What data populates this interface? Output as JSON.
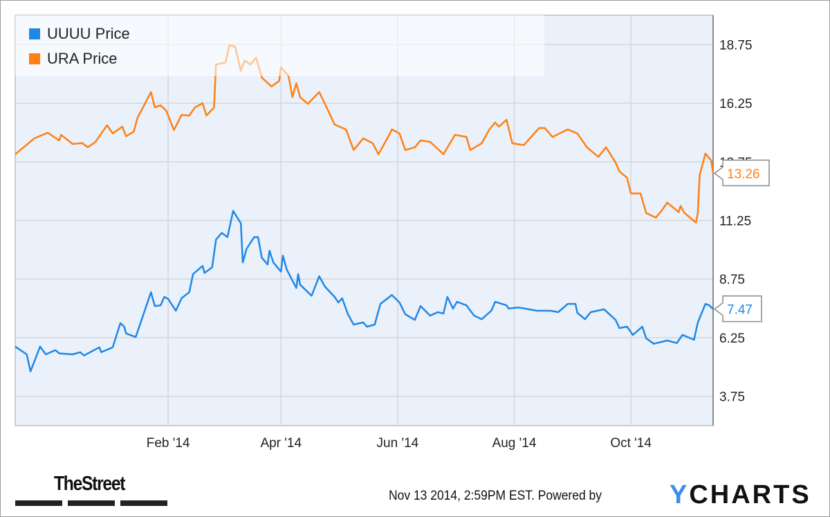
{
  "colors": {
    "uuuu": "#1f88e5",
    "ura": "#ff8012",
    "plot_bg": "#eaf1fb",
    "grid": "#d6d6d6"
  },
  "chart_data": {
    "type": "line",
    "x_unit": "days since Nov 13 2013",
    "xlim": [
      0,
      365
    ],
    "ylim": [
      2.5,
      20.0
    ],
    "y_axis_position": "right",
    "grid": true,
    "legend_position": "top-left",
    "y_ticks": [
      3.75,
      6.25,
      8.75,
      11.25,
      13.75,
      16.25,
      18.75
    ],
    "y_tick_labels": [
      "3.75",
      "6.25",
      "8.75",
      "11.25",
      "13.75",
      "16.25",
      "18.75"
    ],
    "x_ticks": [
      80,
      139,
      200,
      261,
      322
    ],
    "x_tick_labels": [
      "Feb '14",
      "Apr '14",
      "Jun '14",
      "Aug '14",
      "Oct '14"
    ],
    "series": [
      {
        "name": "UUUU Price",
        "key": "uuuu",
        "last_label": "7.47",
        "points": [
          [
            0,
            5.87
          ],
          [
            6,
            5.54
          ],
          [
            8,
            4.81
          ],
          [
            13,
            5.87
          ],
          [
            16,
            5.54
          ],
          [
            21,
            5.72
          ],
          [
            23,
            5.58
          ],
          [
            30,
            5.54
          ],
          [
            34,
            5.63
          ],
          [
            36,
            5.49
          ],
          [
            44,
            5.84
          ],
          [
            45,
            5.63
          ],
          [
            51,
            5.84
          ],
          [
            55,
            6.87
          ],
          [
            57,
            6.72
          ],
          [
            58,
            6.43
          ],
          [
            63,
            6.28
          ],
          [
            65,
            6.75
          ],
          [
            71,
            8.19
          ],
          [
            73,
            7.6
          ],
          [
            76,
            7.63
          ],
          [
            78,
            7.99
          ],
          [
            80,
            7.9
          ],
          [
            84,
            7.4
          ],
          [
            87,
            7.93
          ],
          [
            91,
            8.19
          ],
          [
            93,
            8.96
          ],
          [
            98,
            9.31
          ],
          [
            99,
            9.01
          ],
          [
            103,
            9.25
          ],
          [
            105,
            10.43
          ],
          [
            108,
            10.72
          ],
          [
            111,
            10.54
          ],
          [
            114,
            11.66
          ],
          [
            118,
            11.13
          ],
          [
            119,
            9.46
          ],
          [
            121,
            10.04
          ],
          [
            125,
            10.54
          ],
          [
            127,
            10.54
          ],
          [
            129,
            9.66
          ],
          [
            132,
            9.37
          ],
          [
            133,
            9.96
          ],
          [
            135,
            9.46
          ],
          [
            139,
            9.07
          ],
          [
            140,
            9.75
          ],
          [
            142,
            9.16
          ],
          [
            147,
            8.37
          ],
          [
            148,
            8.96
          ],
          [
            149,
            8.51
          ],
          [
            155,
            8.04
          ],
          [
            159,
            8.87
          ],
          [
            162,
            8.43
          ],
          [
            167,
            7.99
          ],
          [
            169,
            7.75
          ],
          [
            171,
            7.93
          ],
          [
            174,
            7.25
          ],
          [
            177,
            6.81
          ],
          [
            182,
            6.9
          ],
          [
            184,
            6.72
          ],
          [
            188,
            6.81
          ],
          [
            191,
            7.69
          ],
          [
            197,
            8.07
          ],
          [
            201,
            7.75
          ],
          [
            204,
            7.25
          ],
          [
            209,
            7.01
          ],
          [
            212,
            7.6
          ],
          [
            217,
            7.19
          ],
          [
            221,
            7.34
          ],
          [
            224,
            7.28
          ],
          [
            226,
            7.99
          ],
          [
            229,
            7.49
          ],
          [
            231,
            7.78
          ],
          [
            236,
            7.63
          ],
          [
            240,
            7.19
          ],
          [
            244,
            7.04
          ],
          [
            249,
            7.4
          ],
          [
            251,
            7.78
          ],
          [
            257,
            7.63
          ],
          [
            258,
            7.49
          ],
          [
            263,
            7.54
          ],
          [
            273,
            7.4
          ],
          [
            280,
            7.4
          ],
          [
            284,
            7.34
          ],
          [
            289,
            7.69
          ],
          [
            293,
            7.69
          ],
          [
            294,
            7.31
          ],
          [
            298,
            7.04
          ],
          [
            301,
            7.34
          ],
          [
            308,
            7.46
          ],
          [
            314,
            7.01
          ],
          [
            316,
            6.66
          ],
          [
            320,
            6.72
          ],
          [
            323,
            6.37
          ],
          [
            328,
            6.72
          ],
          [
            330,
            6.22
          ],
          [
            334,
            5.99
          ],
          [
            341,
            6.13
          ],
          [
            346,
            6.02
          ],
          [
            349,
            6.37
          ],
          [
            355,
            6.16
          ],
          [
            357,
            6.9
          ],
          [
            361,
            7.69
          ],
          [
            363,
            7.63
          ],
          [
            365,
            7.47
          ]
        ]
      },
      {
        "name": "URA Price",
        "key": "ura",
        "last_label": "13.26",
        "points": [
          [
            0,
            14.07
          ],
          [
            10,
            14.75
          ],
          [
            17,
            14.99
          ],
          [
            23,
            14.66
          ],
          [
            24,
            14.9
          ],
          [
            30,
            14.51
          ],
          [
            35,
            14.55
          ],
          [
            38,
            14.37
          ],
          [
            42,
            14.6
          ],
          [
            48,
            15.31
          ],
          [
            51,
            14.96
          ],
          [
            56,
            15.25
          ],
          [
            58,
            14.84
          ],
          [
            62,
            15.04
          ],
          [
            64,
            15.63
          ],
          [
            71,
            16.72
          ],
          [
            73,
            16.07
          ],
          [
            76,
            16.16
          ],
          [
            79,
            15.93
          ],
          [
            83,
            15.1
          ],
          [
            87,
            15.75
          ],
          [
            91,
            15.72
          ],
          [
            94,
            16.07
          ],
          [
            98,
            16.25
          ],
          [
            100,
            15.72
          ],
          [
            104,
            16.07
          ],
          [
            105,
            17.9
          ],
          [
            110,
            17.99
          ],
          [
            112,
            18.72
          ],
          [
            115,
            18.66
          ],
          [
            118,
            17.63
          ],
          [
            120,
            18.07
          ],
          [
            123,
            17.9
          ],
          [
            126,
            18.19
          ],
          [
            129,
            17.34
          ],
          [
            134,
            16.96
          ],
          [
            138,
            17.19
          ],
          [
            139,
            17.78
          ],
          [
            143,
            17.4
          ],
          [
            145,
            16.51
          ],
          [
            147,
            17.1
          ],
          [
            149,
            16.51
          ],
          [
            153,
            16.22
          ],
          [
            159,
            16.72
          ],
          [
            162,
            16.22
          ],
          [
            167,
            15.34
          ],
          [
            173,
            15.13
          ],
          [
            177,
            14.25
          ],
          [
            182,
            14.75
          ],
          [
            187,
            14.54
          ],
          [
            190,
            14.07
          ],
          [
            195,
            14.81
          ],
          [
            197,
            15.13
          ],
          [
            201,
            14.96
          ],
          [
            204,
            14.25
          ],
          [
            209,
            14.37
          ],
          [
            212,
            14.66
          ],
          [
            217,
            14.6
          ],
          [
            224,
            14.07
          ],
          [
            230,
            14.9
          ],
          [
            236,
            14.81
          ],
          [
            238,
            14.25
          ],
          [
            244,
            14.54
          ],
          [
            248,
            15.13
          ],
          [
            251,
            15.43
          ],
          [
            253,
            15.25
          ],
          [
            257,
            15.54
          ],
          [
            260,
            14.54
          ],
          [
            266,
            14.46
          ],
          [
            274,
            15.19
          ],
          [
            277,
            15.19
          ],
          [
            281,
            14.81
          ],
          [
            289,
            15.13
          ],
          [
            294,
            14.96
          ],
          [
            299,
            14.37
          ],
          [
            305,
            13.96
          ],
          [
            309,
            14.37
          ],
          [
            314,
            13.72
          ],
          [
            316,
            13.34
          ],
          [
            320,
            13.07
          ],
          [
            322,
            12.4
          ],
          [
            327,
            12.4
          ],
          [
            330,
            11.57
          ],
          [
            335,
            11.37
          ],
          [
            338,
            11.66
          ],
          [
            341,
            12.01
          ],
          [
            347,
            11.6
          ],
          [
            348,
            11.87
          ],
          [
            350,
            11.57
          ],
          [
            356,
            11.16
          ],
          [
            357,
            11.57
          ],
          [
            358,
            13.19
          ],
          [
            361,
            14.1
          ],
          [
            364,
            13.81
          ],
          [
            365,
            13.26
          ]
        ]
      }
    ]
  },
  "footer": {
    "brand_logo": "TheStreet",
    "timestamp": "Nov 13 2014, 2:59PM EST.",
    "powered_by": "Powered by",
    "ycharts_y": "Y",
    "ycharts_rest": "CHARTS"
  }
}
